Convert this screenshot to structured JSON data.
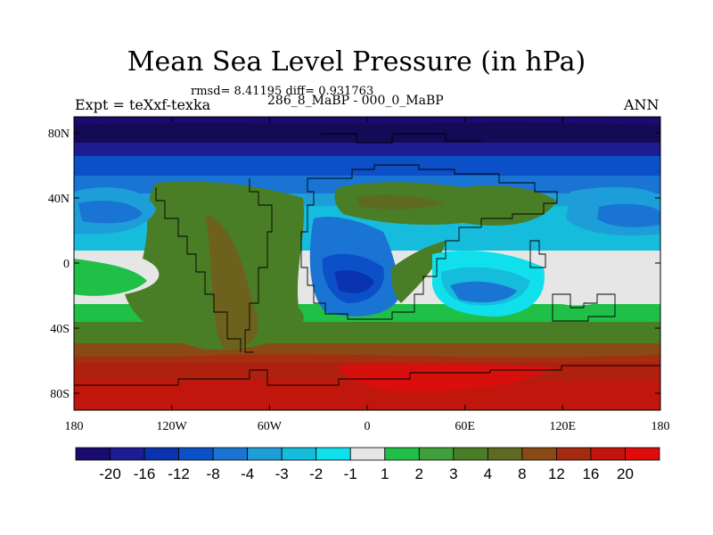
{
  "figure": {
    "title": "Mean Sea Level Pressure (in hPa)",
    "stats": "rmsd= 8.41195 diff= 0.931763",
    "experiment": "Expt = teXxf-texka",
    "comparison": "286_8_MaBP - 000_0_MaBP",
    "season": "ANN"
  },
  "axes": {
    "x_ticks": [
      "180",
      "120W",
      "60W",
      "0",
      "60E",
      "120E",
      "180"
    ],
    "y_ticks": [
      "80N",
      "40N",
      "0",
      "40S",
      "80S"
    ]
  },
  "colorbar": {
    "labels": [
      "-20",
      "-16",
      "-12",
      "-8",
      "-4",
      "-3",
      "-2",
      "-1",
      "1",
      "2",
      "3",
      "4",
      "8",
      "12",
      "16",
      "20"
    ],
    "colors": [
      "#1a0b6e",
      "#1c1d93",
      "#0a33b0",
      "#0c50c8",
      "#1a74d4",
      "#1e9ed8",
      "#16bcdc",
      "#10e0ec",
      "#e6e6e6",
      "#20c048",
      "#3ea03a",
      "#4a7e26",
      "#5e6a22",
      "#8a4a16",
      "#a42a10",
      "#c4120c",
      "#e00c0c"
    ]
  },
  "chart_data": {
    "type": "heatmap",
    "title": "Mean Sea Level Pressure (in hPa)",
    "variable": "Mean Sea Level Pressure difference",
    "units": "hPa",
    "x_range": [
      "180",
      "180"
    ],
    "y_range": [
      "90S",
      "90N"
    ],
    "levels": [
      -20,
      -16,
      -12,
      -8,
      -4,
      -3,
      -2,
      -1,
      1,
      2,
      3,
      4,
      8,
      12,
      16,
      20
    ],
    "regions": [
      {
        "area": "high northern latitudes (60N-90N)",
        "value_range": [
          -20,
          -8
        ]
      },
      {
        "area": "North Pacific / North Atlantic mid-latitude lows",
        "value_range": [
          -12,
          -2
        ]
      },
      {
        "area": "continental interior low (0-40S, 40W-20E)",
        "value_range": [
          -12,
          -4
        ]
      },
      {
        "area": "Indian Ocean low (10S-30S, 40E-100E)",
        "value_range": [
          -8,
          -2
        ]
      },
      {
        "area": "tropical bands",
        "value_range": [
          -1,
          1
        ]
      },
      {
        "area": "eastern Pacific / central Pacific",
        "value_range": [
          3,
          8
        ]
      },
      {
        "area": "Southern Hemisphere mid latitudes (40S-60S)",
        "value_range": [
          8,
          16
        ]
      },
      {
        "area": "high southern latitudes (60S-90S)",
        "value_range": [
          16,
          20
        ]
      }
    ]
  }
}
